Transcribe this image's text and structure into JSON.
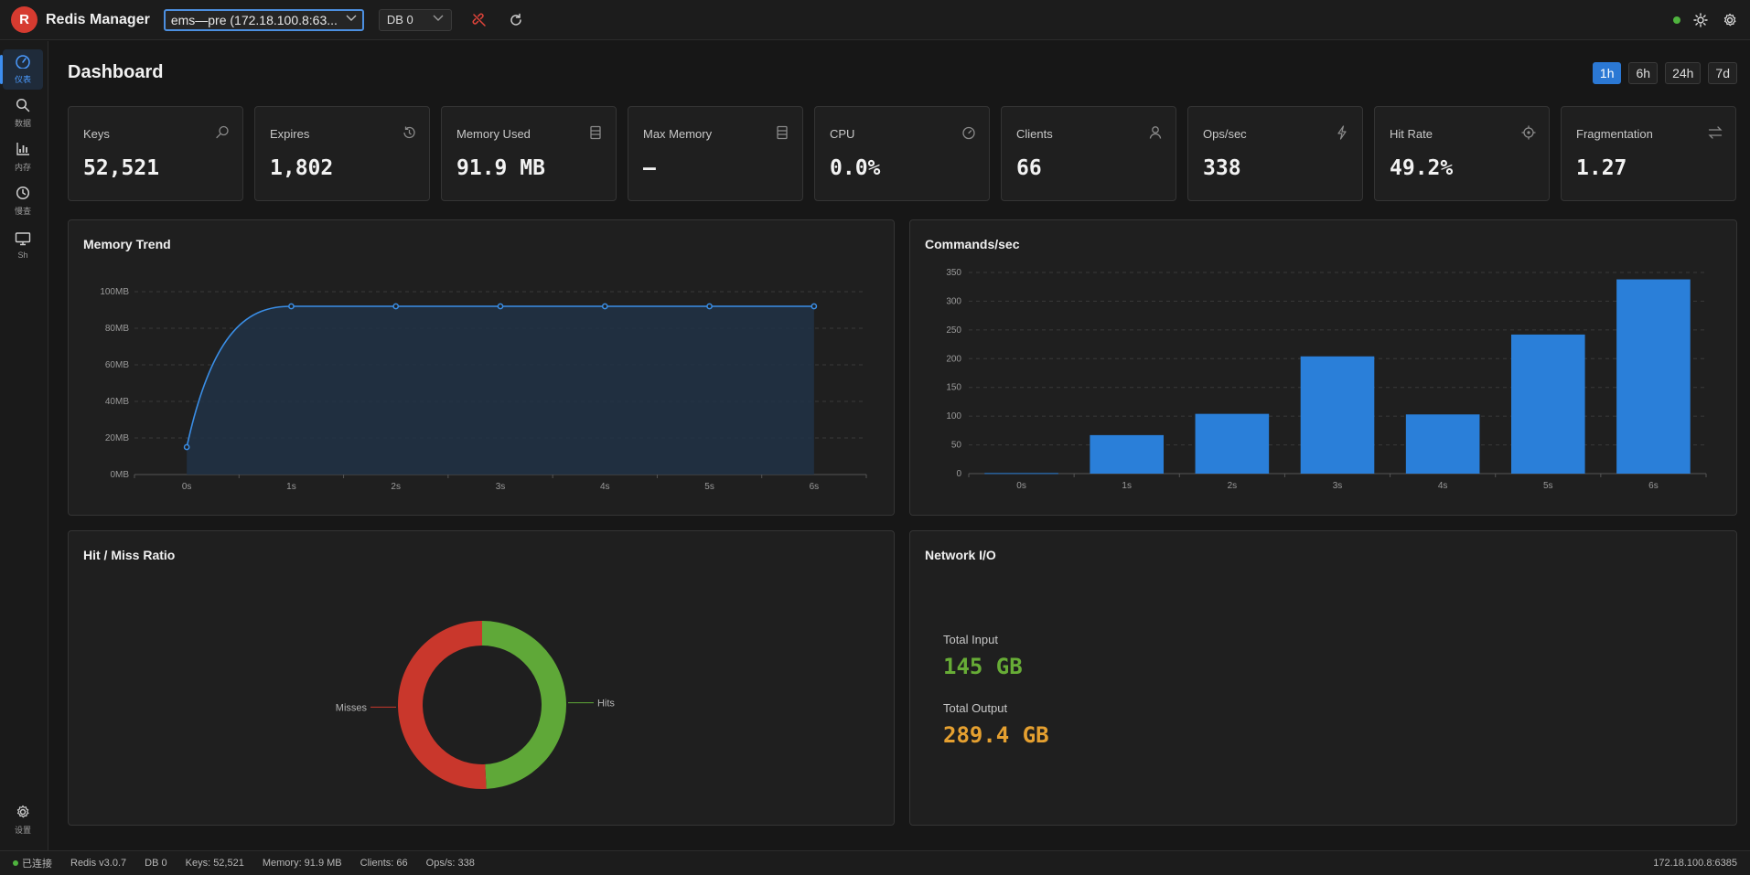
{
  "app": {
    "logo_letter": "R",
    "title": "Redis Manager"
  },
  "toolbar": {
    "connection_value": "ems—pre (172.18.100.8:63...",
    "db_value": "DB 0",
    "icons": [
      "disconnect-icon",
      "refresh-icon",
      "status-dot",
      "theme-sun-icon",
      "settings-icon"
    ]
  },
  "sidebar": {
    "items": [
      {
        "label": "仪表",
        "icon": "dashboard-gauge-icon",
        "active": true
      },
      {
        "label": "数据",
        "icon": "search-icon"
      },
      {
        "label": "内存",
        "icon": "bar-chart-icon"
      },
      {
        "label": "慢查",
        "icon": "clock-icon"
      },
      {
        "label": "Sh",
        "icon": "monitor-icon"
      }
    ],
    "settings_label": "设置"
  },
  "dashboard": {
    "title": "Dashboard",
    "ranges": [
      "1h",
      "6h",
      "24h",
      "7d"
    ],
    "active_range": "1h"
  },
  "stats": [
    {
      "label": "Keys",
      "value": "52,521",
      "icon": "key-search-icon"
    },
    {
      "label": "Expires",
      "value": "1,802",
      "icon": "history-clock-icon"
    },
    {
      "label": "Memory Used",
      "value": "91.9 MB",
      "icon": "database-icon"
    },
    {
      "label": "Max Memory",
      "value": "—",
      "icon": "database-icon"
    },
    {
      "label": "CPU",
      "value": "0.0%",
      "icon": "gauge-icon"
    },
    {
      "label": "Clients",
      "value": "66",
      "icon": "user-icon"
    },
    {
      "label": "Ops/sec",
      "value": "338",
      "icon": "lightning-icon"
    },
    {
      "label": "Hit Rate",
      "value": "49.2%",
      "icon": "target-icon"
    },
    {
      "label": "Fragmentation",
      "value": "1.27",
      "icon": "swap-arrows-icon"
    }
  ],
  "panels": {
    "memory_trend": "Memory Trend",
    "commands": "Commands/sec",
    "hitmiss": "Hit / Miss Ratio",
    "network": "Network I/O"
  },
  "network": {
    "input_label": "Total Input",
    "input_value": "145 GB",
    "output_label": "Total Output",
    "output_value": "289.4 GB",
    "input_color": "#67ac36",
    "output_color": "#e5a030"
  },
  "chart_data": [
    {
      "type": "area",
      "title": "Memory Trend",
      "categories": [
        "0s",
        "1s",
        "2s",
        "3s",
        "4s",
        "5s",
        "6s"
      ],
      "series": [
        {
          "values": [
            15,
            92,
            92,
            92,
            92,
            92,
            92
          ]
        }
      ],
      "y_ticks": [
        "0MB",
        "20MB",
        "40MB",
        "60MB",
        "80MB",
        "100MB"
      ],
      "ylim": [
        0,
        100
      ],
      "grid": true,
      "color": "#3a8ee6"
    },
    {
      "type": "bar",
      "title": "Commands/sec",
      "categories": [
        "0s",
        "1s",
        "2s",
        "3s",
        "4s",
        "5s",
        "6s"
      ],
      "values": [
        1,
        67,
        104,
        204,
        103,
        242,
        338
      ],
      "y_ticks": [
        "0",
        "50",
        "100",
        "150",
        "200",
        "250",
        "300",
        "350"
      ],
      "ylim": [
        0,
        350
      ],
      "grid": true,
      "color": "#2a7fd9"
    },
    {
      "type": "pie",
      "title": "Hit / Miss Ratio",
      "labels": [
        "Hits",
        "Misses"
      ],
      "values": [
        49.2,
        50.8
      ],
      "colors": [
        "#5fa838",
        "#c9372c"
      ]
    }
  ],
  "statusbar": {
    "connected": "已连接",
    "version": "Redis v3.0.7",
    "db": "DB 0",
    "keys": "Keys: 52,521",
    "memory": "Memory: 91.9 MB",
    "clients": "Clients: 66",
    "ops": "Ops/s: 338",
    "host": "172.18.100.8:6385"
  }
}
